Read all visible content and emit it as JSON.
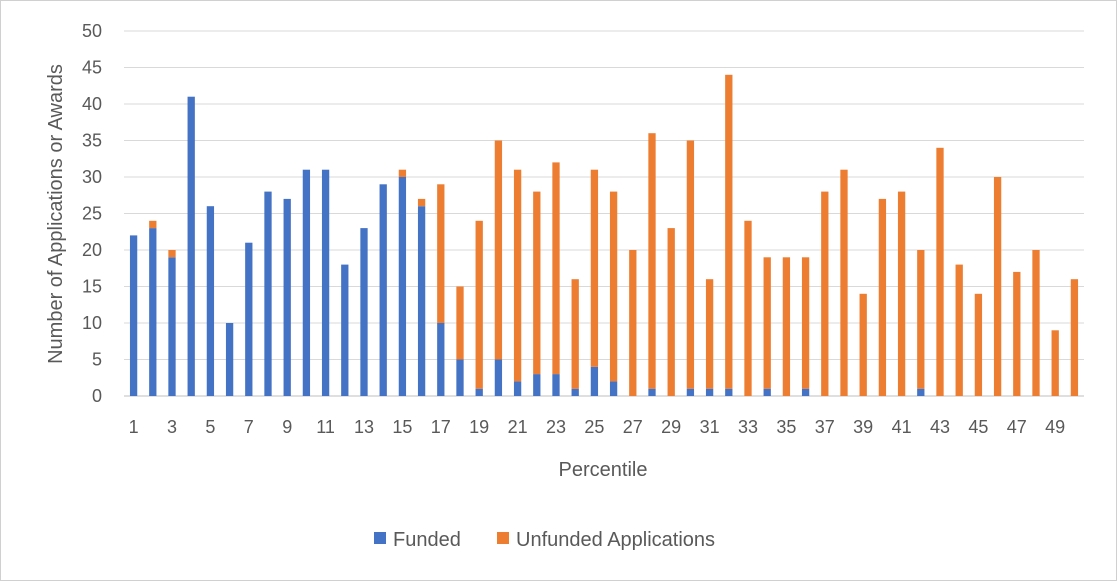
{
  "chart_data": {
    "type": "bar",
    "stacked": true,
    "title": "",
    "xlabel": "Percentile",
    "ylabel": "Number of Applications or Awards",
    "ylim": [
      0,
      50
    ],
    "ytick_step": 5,
    "grid": true,
    "legend_position": "bottom",
    "categories": [
      1,
      2,
      3,
      4,
      5,
      6,
      7,
      8,
      9,
      10,
      11,
      12,
      13,
      14,
      15,
      16,
      17,
      18,
      19,
      20,
      21,
      22,
      23,
      24,
      25,
      26,
      27,
      28,
      29,
      30,
      31,
      32,
      33,
      34,
      35,
      36,
      37,
      38,
      39,
      40,
      41,
      42,
      43,
      44,
      45,
      46,
      47,
      48,
      49,
      50
    ],
    "x_tick_labels": [
      "1",
      "3",
      "5",
      "7",
      "9",
      "11",
      "13",
      "15",
      "17",
      "19",
      "21",
      "23",
      "25",
      "27",
      "29",
      "31",
      "33",
      "35",
      "37",
      "39",
      "41",
      "43",
      "45",
      "47",
      "49"
    ],
    "series": [
      {
        "name": "Funded",
        "color": "#4472C4",
        "values": [
          22,
          23,
          19,
          41,
          26,
          10,
          21,
          28,
          27,
          31,
          31,
          18,
          23,
          29,
          30,
          26,
          10,
          5,
          1,
          5,
          2,
          3,
          3,
          1,
          4,
          2,
          0,
          1,
          0,
          1,
          1,
          1,
          0,
          1,
          0,
          1,
          0,
          0,
          0,
          0,
          0,
          1,
          0,
          0,
          0,
          0,
          0,
          0,
          0,
          0
        ]
      },
      {
        "name": "Unfunded Applications",
        "color": "#ED7D31",
        "values": [
          0,
          1,
          1,
          0,
          0,
          0,
          0,
          0,
          0,
          0,
          0,
          0,
          0,
          0,
          1,
          1,
          19,
          10,
          23,
          30,
          29,
          25,
          29,
          15,
          27,
          26,
          20,
          35,
          23,
          34,
          15,
          43,
          24,
          18,
          19,
          18,
          28,
          31,
          14,
          27,
          28,
          19,
          34,
          18,
          14,
          30,
          17,
          20,
          9,
          16
        ]
      }
    ]
  }
}
